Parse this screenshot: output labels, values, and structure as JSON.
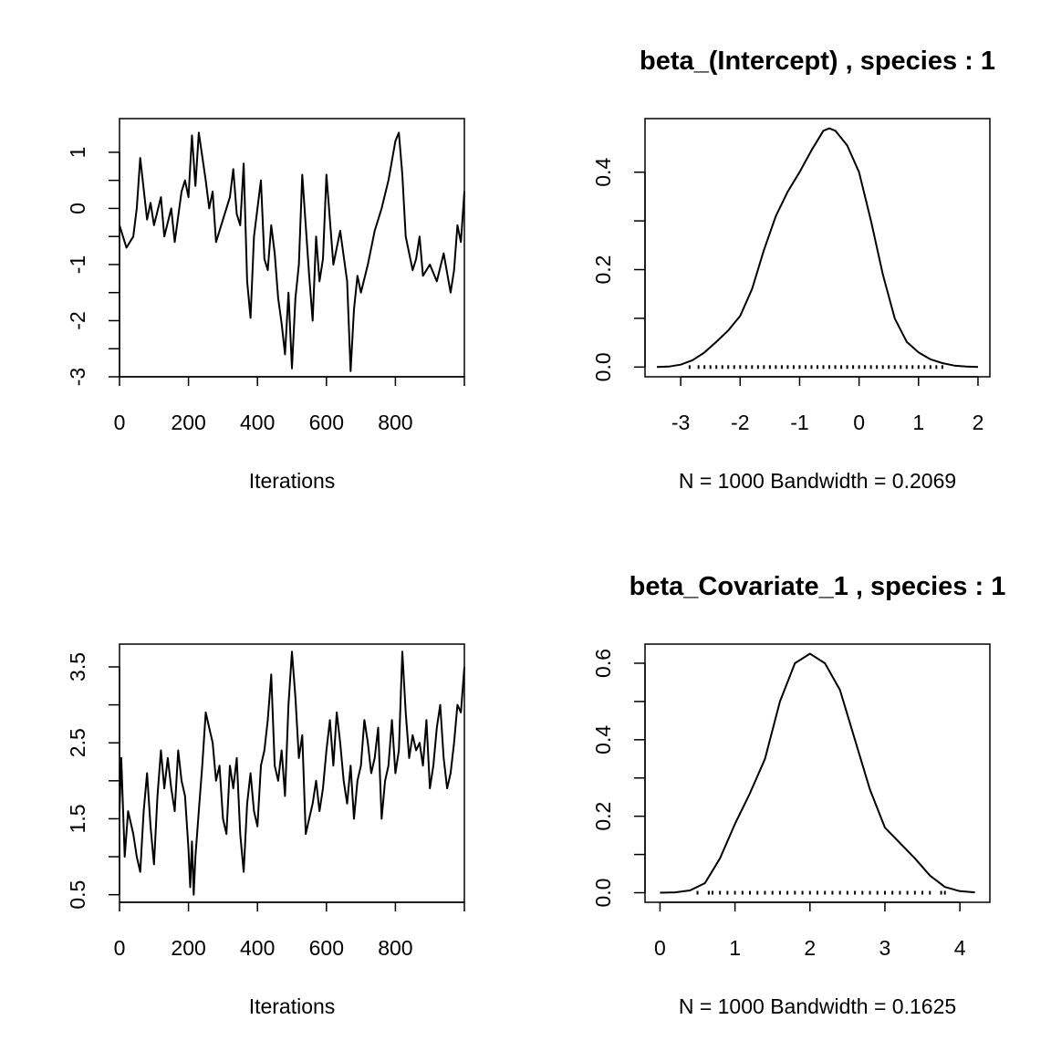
{
  "chart_data": [
    {
      "type": "line",
      "title": "",
      "xlabel": "Iterations",
      "ylabel": "",
      "xlim": [
        0,
        1000
      ],
      "ylim": [
        -3.0,
        1.6
      ],
      "x_ticks": [
        "0",
        "200",
        "400",
        "600",
        "800"
      ],
      "y_ticks": [
        "-3",
        "-2",
        "-1",
        "0",
        "1"
      ],
      "grid": false,
      "series": [
        {
          "x": [
            0,
            20,
            40,
            50,
            60,
            80,
            90,
            100,
            120,
            130,
            150,
            160,
            180,
            190,
            200,
            210,
            220,
            230,
            250,
            260,
            270,
            280,
            300,
            320,
            330,
            340,
            350,
            360,
            370,
            380,
            390,
            400,
            410,
            420,
            430,
            440,
            450,
            460,
            470,
            480,
            490,
            500,
            510,
            520,
            530,
            540,
            550,
            560,
            570,
            580,
            590,
            600,
            620,
            640,
            660,
            670,
            680,
            690,
            700,
            720,
            740,
            760,
            780,
            800,
            810,
            820,
            830,
            840,
            850,
            860,
            870,
            880,
            900,
            920,
            940,
            960,
            970,
            980,
            990,
            1000
          ],
          "values": [
            -0.3,
            -0.7,
            -0.5,
            0.0,
            0.9,
            -0.2,
            0.1,
            -0.3,
            0.2,
            -0.5,
            0.0,
            -0.6,
            0.3,
            0.5,
            0.2,
            1.3,
            0.4,
            1.35,
            0.5,
            0.0,
            0.3,
            -0.6,
            -0.2,
            0.2,
            0.7,
            -0.1,
            -0.3,
            0.8,
            -1.3,
            -1.95,
            -0.5,
            0.0,
            0.5,
            -0.9,
            -1.1,
            -0.3,
            -0.8,
            -1.6,
            -2.05,
            -2.6,
            -1.5,
            -2.85,
            -1.6,
            -1.0,
            0.6,
            -0.3,
            -1.2,
            -2.0,
            -0.5,
            -1.3,
            -0.9,
            0.6,
            -1.0,
            -0.4,
            -1.3,
            -2.9,
            -1.8,
            -1.2,
            -1.5,
            -1.0,
            -0.4,
            0.0,
            0.5,
            1.2,
            1.35,
            0.6,
            -0.5,
            -0.8,
            -1.1,
            -0.9,
            -0.5,
            -1.2,
            -1.0,
            -1.3,
            -0.8,
            -1.5,
            -1.1,
            -0.3,
            -0.6,
            0.3
          ]
        }
      ]
    },
    {
      "type": "line",
      "title": "beta_(Intercept) , species :  1",
      "xlabel": "N = 1000   Bandwidth = 0.2069",
      "ylabel": "",
      "xlim": [
        -3.6,
        2.2
      ],
      "ylim": [
        -0.02,
        0.51
      ],
      "x_ticks": [
        "-3",
        "-2",
        "-1",
        "0",
        "1",
        "2"
      ],
      "y_ticks": [
        "0.0",
        "0.2",
        "0.4"
      ],
      "grid": false,
      "series": [
        {
          "x": [
            -3.4,
            -3.2,
            -3.0,
            -2.8,
            -2.6,
            -2.4,
            -2.2,
            -2.0,
            -1.8,
            -1.6,
            -1.4,
            -1.2,
            -1.0,
            -0.8,
            -0.6,
            -0.5,
            -0.4,
            -0.2,
            0.0,
            0.2,
            0.4,
            0.6,
            0.8,
            1.0,
            1.2,
            1.4,
            1.6,
            1.8,
            2.0
          ],
          "values": [
            0.0,
            0.001,
            0.005,
            0.014,
            0.03,
            0.052,
            0.075,
            0.105,
            0.16,
            0.24,
            0.31,
            0.36,
            0.4,
            0.445,
            0.485,
            0.49,
            0.485,
            0.455,
            0.4,
            0.3,
            0.19,
            0.1,
            0.052,
            0.03,
            0.016,
            0.008,
            0.003,
            0.001,
            0.0
          ]
        }
      ],
      "rug": [
        -2.85,
        -2.7,
        -2.6,
        -2.5,
        -2.4,
        -2.3,
        -2.2,
        -2.1,
        -2.0,
        -1.9,
        -1.8,
        -1.7,
        -1.6,
        -1.5,
        -1.4,
        -1.3,
        -1.2,
        -1.1,
        -1.0,
        -0.9,
        -0.8,
        -0.7,
        -0.6,
        -0.5,
        -0.4,
        -0.3,
        -0.2,
        -0.1,
        0.0,
        0.1,
        0.2,
        0.3,
        0.4,
        0.5,
        0.6,
        0.7,
        0.8,
        0.9,
        1.0,
        1.1,
        1.2,
        1.3,
        1.4
      ]
    },
    {
      "type": "line",
      "title": "",
      "xlabel": "Iterations",
      "ylabel": "",
      "xlim": [
        0,
        1000
      ],
      "ylim": [
        0.4,
        3.8
      ],
      "x_ticks": [
        "0",
        "200",
        "400",
        "600",
        "800"
      ],
      "y_ticks": [
        "0.5",
        "1.5",
        "2.5",
        "3.5"
      ],
      "grid": false,
      "series": [
        {
          "x": [
            0,
            5,
            15,
            25,
            40,
            50,
            60,
            70,
            80,
            90,
            100,
            110,
            120,
            130,
            140,
            150,
            160,
            170,
            180,
            190,
            200,
            205,
            210,
            215,
            220,
            230,
            240,
            250,
            260,
            270,
            280,
            290,
            300,
            310,
            320,
            330,
            340,
            350,
            360,
            370,
            380,
            390,
            400,
            410,
            420,
            430,
            440,
            450,
            460,
            470,
            480,
            490,
            500,
            510,
            520,
            530,
            540,
            550,
            560,
            570,
            580,
            590,
            600,
            610,
            620,
            630,
            640,
            650,
            660,
            670,
            680,
            690,
            700,
            710,
            720,
            730,
            740,
            750,
            760,
            770,
            780,
            790,
            800,
            810,
            820,
            830,
            840,
            850,
            860,
            870,
            880,
            890,
            900,
            910,
            920,
            930,
            940,
            950,
            960,
            970,
            980,
            990,
            1000
          ],
          "values": [
            1.6,
            2.3,
            1.0,
            1.6,
            1.3,
            1.0,
            0.8,
            1.6,
            2.1,
            1.4,
            0.9,
            1.8,
            2.4,
            1.9,
            2.3,
            1.9,
            1.6,
            2.4,
            2.0,
            1.8,
            1.1,
            0.6,
            1.2,
            0.5,
            1.0,
            1.6,
            2.2,
            2.9,
            2.7,
            2.5,
            2.0,
            2.2,
            1.5,
            1.3,
            2.2,
            1.9,
            2.3,
            1.3,
            0.8,
            1.7,
            2.1,
            1.6,
            1.4,
            2.2,
            2.4,
            2.8,
            3.4,
            2.2,
            2.0,
            2.4,
            1.8,
            3.0,
            3.7,
            3.1,
            2.3,
            2.6,
            1.3,
            1.5,
            1.7,
            2.0,
            1.6,
            1.9,
            2.4,
            2.8,
            2.2,
            2.9,
            2.5,
            2.0,
            1.7,
            2.2,
            1.5,
            2.0,
            2.2,
            2.8,
            2.5,
            2.1,
            2.3,
            2.7,
            1.5,
            2.0,
            2.2,
            2.8,
            2.1,
            2.4,
            3.7,
            2.9,
            2.3,
            2.6,
            2.4,
            2.5,
            2.2,
            2.8,
            1.9,
            2.2,
            2.7,
            3.0,
            2.3,
            1.9,
            2.1,
            2.5,
            3.0,
            2.9,
            3.5
          ]
        }
      ]
    },
    {
      "type": "line",
      "title": "beta_Covariate_1 , species :  1",
      "xlabel": "N = 1000   Bandwidth = 0.1625",
      "ylabel": "",
      "xlim": [
        -0.2,
        4.4
      ],
      "ylim": [
        -0.025,
        0.65
      ],
      "x_ticks": [
        "0",
        "1",
        "2",
        "3",
        "4"
      ],
      "y_ticks": [
        "0.0",
        "0.2",
        "0.4",
        "0.6"
      ],
      "grid": false,
      "series": [
        {
          "x": [
            0.0,
            0.2,
            0.4,
            0.6,
            0.8,
            1.0,
            1.2,
            1.4,
            1.6,
            1.8,
            2.0,
            2.2,
            2.4,
            2.6,
            2.8,
            3.0,
            3.2,
            3.4,
            3.6,
            3.8,
            4.0,
            4.2
          ],
          "values": [
            0.0,
            0.001,
            0.006,
            0.025,
            0.09,
            0.18,
            0.26,
            0.35,
            0.5,
            0.6,
            0.625,
            0.6,
            0.53,
            0.4,
            0.27,
            0.17,
            0.13,
            0.09,
            0.045,
            0.015,
            0.004,
            0.001
          ]
        }
      ],
      "rug": [
        0.5,
        0.65,
        0.7,
        0.8,
        0.9,
        1.0,
        1.1,
        1.2,
        1.3,
        1.4,
        1.5,
        1.6,
        1.7,
        1.8,
        1.9,
        2.0,
        2.1,
        2.2,
        2.3,
        2.4,
        2.5,
        2.6,
        2.7,
        2.8,
        2.9,
        3.0,
        3.1,
        3.2,
        3.3,
        3.4,
        3.5,
        3.6,
        3.75,
        3.8
      ]
    }
  ]
}
